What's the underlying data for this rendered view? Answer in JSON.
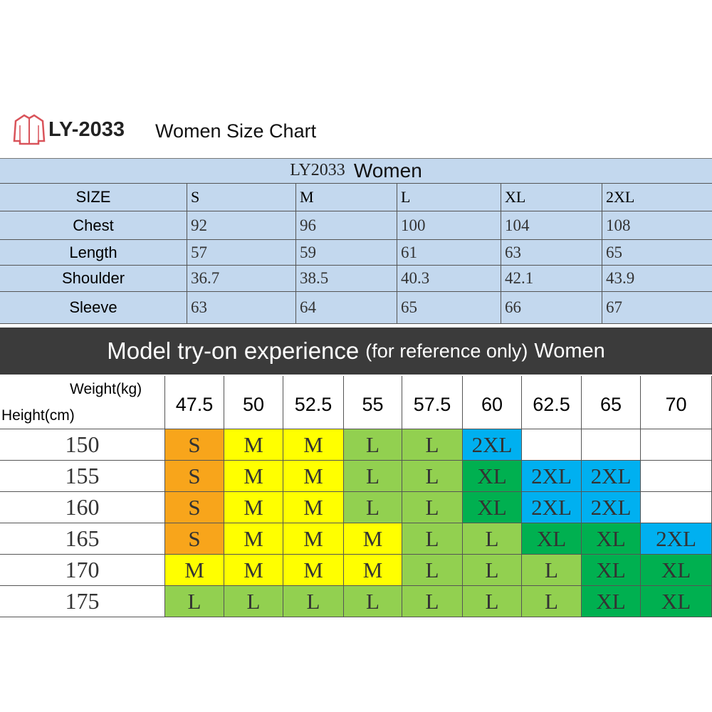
{
  "header": {
    "model": "LY-2033",
    "title": "Women Size Chart"
  },
  "size_table": {
    "title_code": "LY2033",
    "title_name": "Women",
    "columns": [
      "SIZE",
      "S",
      "M",
      "L",
      "XL",
      "2XL"
    ],
    "rows": [
      [
        "Chest",
        92,
        96,
        100,
        104,
        108
      ],
      [
        "Length",
        57,
        59,
        61,
        63,
        65
      ],
      [
        "Shoulder",
        36.7,
        38.5,
        40.3,
        42.1,
        43.9
      ],
      [
        "Sleeve",
        63,
        64,
        65,
        66,
        67
      ]
    ]
  },
  "banner": {
    "main": "Model try-on experience",
    "note": "(for reference only)",
    "suffix": "Women"
  },
  "fit_table": {
    "weight_label": "Weight(kg)",
    "height_label": "Height(cm)",
    "weights": [
      47.5,
      50,
      52.5,
      55,
      57.5,
      60,
      62.5,
      65,
      70
    ],
    "rows": [
      {
        "height": 150,
        "sizes": [
          "S",
          "M",
          "M",
          "L",
          "L",
          "2XL",
          null,
          null,
          null
        ]
      },
      {
        "height": 155,
        "sizes": [
          "S",
          "M",
          "M",
          "L",
          "L",
          "XL",
          "2XL",
          "2XL",
          null
        ]
      },
      {
        "height": 160,
        "sizes": [
          "S",
          "M",
          "M",
          "L",
          "L",
          "XL",
          "2XL",
          "2XL",
          null
        ]
      },
      {
        "height": 165,
        "sizes": [
          "S",
          "M",
          "M",
          "M",
          "L",
          "L",
          "XL",
          "XL",
          "2XL"
        ]
      },
      {
        "height": 170,
        "sizes": [
          "M",
          "M",
          "M",
          "M",
          "L",
          "L",
          "L",
          "XL",
          "XL"
        ]
      },
      {
        "height": 175,
        "sizes": [
          "L",
          "L",
          "L",
          "L",
          "L",
          "L",
          "L",
          "XL",
          "XL"
        ]
      }
    ],
    "colors": {
      "S": "#f8a51b",
      "M": "#ffff00",
      "L": "#92d050",
      "XL": "#00b050",
      "2XL": "#00b0f0"
    }
  }
}
